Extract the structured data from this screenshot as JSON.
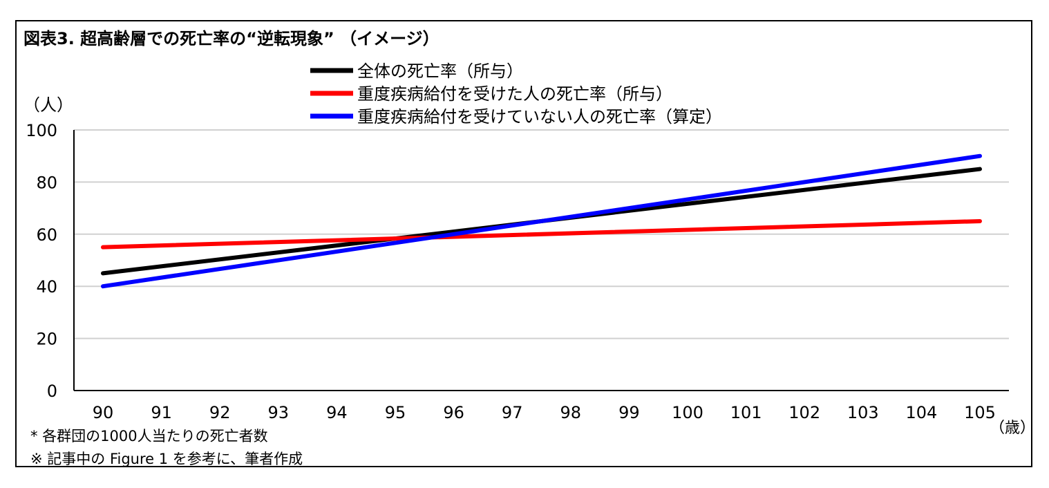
{
  "chart_data": {
    "type": "line",
    "title": "図表3.  超高齢層での死亡率の“逆転現象” （イメージ）",
    "ylabel": "（人）",
    "xlabel": "（歳）",
    "categories": [
      "90",
      "91",
      "92",
      "93",
      "94",
      "95",
      "96",
      "97",
      "98",
      "99",
      "100",
      "101",
      "102",
      "103",
      "104",
      "105"
    ],
    "x": [
      90,
      105
    ],
    "ylim": [
      0,
      100
    ],
    "yticks": [
      0,
      20,
      40,
      60,
      80,
      100
    ],
    "grid": true,
    "legend_position": "top",
    "series": [
      {
        "name": "全体の死亡率（所与）",
        "color": "#000000",
        "x": [
          90,
          105
        ],
        "values": [
          45,
          85
        ]
      },
      {
        "name": "重度疾病給付を受けた人の死亡率（所与）",
        "color": "#ff0000",
        "x": [
          90,
          105
        ],
        "values": [
          55,
          65
        ]
      },
      {
        "name": "重度疾病給付を受けていない人の死亡率（算定）",
        "color": "#0000ff",
        "x": [
          90,
          105
        ],
        "values": [
          40,
          90
        ]
      }
    ]
  },
  "notes": [
    "*  各群団の1000人当たりの死亡者数",
    "※ 記事中の Figure 1 を参考に、筆者作成"
  ]
}
